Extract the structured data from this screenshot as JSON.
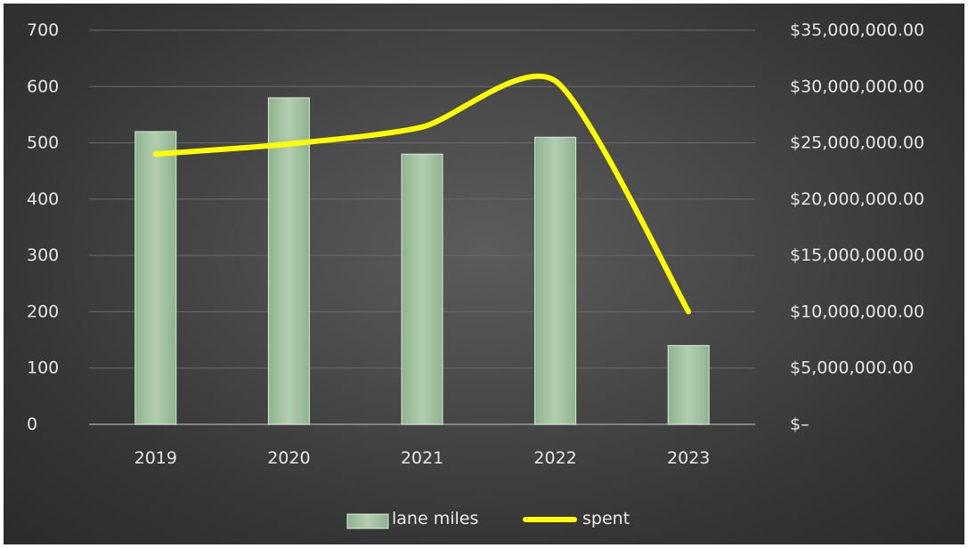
{
  "chart_data": {
    "type": "bar",
    "categories": [
      "2019",
      "2020",
      "2021",
      "2022",
      "2023"
    ],
    "series": [
      {
        "name": "lane miles",
        "type": "bar",
        "axis": "left",
        "values": [
          520,
          580,
          480,
          510,
          140
        ],
        "color": "#a6c4a5"
      },
      {
        "name": "spent",
        "type": "line",
        "axis": "right",
        "values": [
          24000000,
          24900000,
          26400000,
          30500000,
          10000000
        ],
        "color": "#ffff00"
      }
    ],
    "y_left": {
      "ylim": [
        0,
        700
      ],
      "ticks": [
        0,
        100,
        200,
        300,
        400,
        500,
        600,
        700
      ]
    },
    "y_right": {
      "ylim": [
        0,
        35000000
      ],
      "ticks": [
        0,
        5000000,
        10000000,
        15000000,
        20000000,
        25000000,
        30000000,
        35000000
      ],
      "tick_labels": [
        "$–",
        "$5,000,000.00",
        "$10,000,000.00",
        "$15,000,000.00",
        "$20,000,000.00",
        "$25,000,000.00",
        "$30,000,000.00",
        "$35,000,000.00"
      ]
    },
    "grid": true,
    "legend_position": "bottom",
    "title": "",
    "xlabel": "",
    "ylabel": ""
  }
}
